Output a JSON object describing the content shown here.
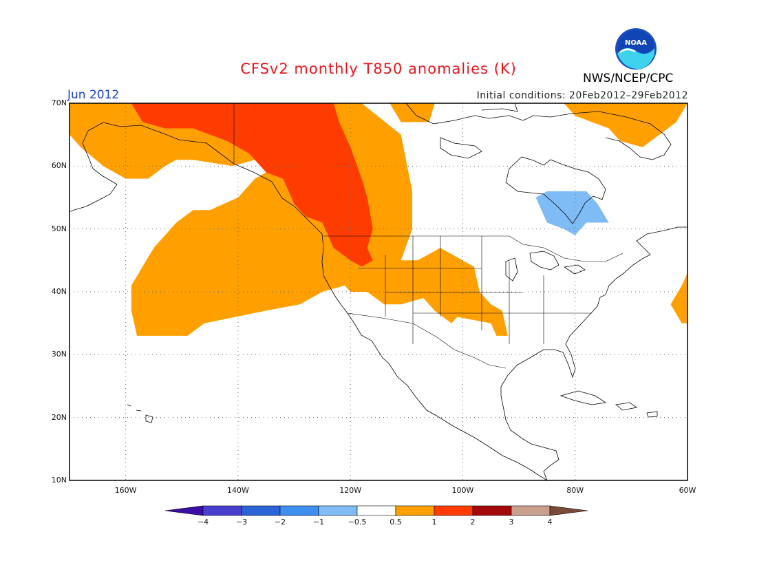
{
  "header": {
    "title": "CFSv2 monthly T850 anomalies (K)",
    "period": "Jun 2012",
    "initial_conditions": "Initial conditions: 20Feb2012–29Feb2012",
    "agency": "NWS/NCEP/CPC",
    "logo_text": "NOAA"
  },
  "map": {
    "lon_range": [
      -170,
      -60
    ],
    "lat_range": [
      10,
      70
    ],
    "lat_ticks": [
      {
        "value": 70,
        "label": "70N"
      },
      {
        "value": 60,
        "label": "60N"
      },
      {
        "value": 50,
        "label": "50N"
      },
      {
        "value": 40,
        "label": "40N"
      },
      {
        "value": 30,
        "label": "30N"
      },
      {
        "value": 20,
        "label": "20N"
      },
      {
        "value": 10,
        "label": "10N"
      }
    ],
    "lon_ticks": [
      {
        "value": -160,
        "label": "160W"
      },
      {
        "value": -140,
        "label": "140W"
      },
      {
        "value": -120,
        "label": "120W"
      },
      {
        "value": -100,
        "label": "100W"
      },
      {
        "value": -80,
        "label": "80W"
      },
      {
        "value": -60,
        "label": "60W"
      }
    ]
  },
  "chart_data": {
    "type": "heatmap",
    "variable": "T850 anomaly",
    "units": "K",
    "colorbar": {
      "bins": [
        {
          "color": "#3a0fa8"
        },
        {
          "color": "#4b3fd0"
        },
        {
          "color": "#2a64d6"
        },
        {
          "color": "#3d8ff0"
        },
        {
          "color": "#7fbcf6"
        },
        {
          "color": "#ffffff"
        },
        {
          "color": "#ffa000"
        },
        {
          "color": "#ff3c00"
        },
        {
          "color": "#a40a0a"
        },
        {
          "color": "#c9a08f"
        },
        {
          "color": "#7a4b3a"
        }
      ],
      "tick_labels": [
        "−4",
        "−3",
        "−2",
        "−1",
        "−0.5",
        "0.5",
        "1",
        "2",
        "3",
        "4"
      ]
    },
    "regions": [
      {
        "level": "0.5 to 1 K",
        "color": "#ffa000",
        "polygon": [
          [
            -170,
            70
          ],
          [
            -118,
            70
          ],
          [
            -111,
            65
          ],
          [
            -109,
            56
          ],
          [
            -109,
            50
          ],
          [
            -111,
            45
          ],
          [
            -108,
            45
          ],
          [
            -104,
            47
          ],
          [
            -98,
            44
          ],
          [
            -97,
            40
          ],
          [
            -95,
            38
          ],
          [
            -93,
            37
          ],
          [
            -92,
            33
          ],
          [
            -94,
            33
          ],
          [
            -95,
            35
          ],
          [
            -101,
            36
          ],
          [
            -102,
            35
          ],
          [
            -105,
            37
          ],
          [
            -107,
            39
          ],
          [
            -111,
            38
          ],
          [
            -114,
            38
          ],
          [
            -117,
            40
          ],
          [
            -120,
            40
          ],
          [
            -121,
            41
          ],
          [
            -125,
            40
          ],
          [
            -129,
            38
          ],
          [
            -135,
            37
          ],
          [
            -146,
            35
          ],
          [
            -149,
            33
          ],
          [
            -158,
            33
          ],
          [
            -159,
            37
          ],
          [
            -159,
            41
          ],
          [
            -157,
            44
          ],
          [
            -155,
            47
          ],
          [
            -151,
            51
          ],
          [
            -148,
            53
          ],
          [
            -145,
            53
          ],
          [
            -140,
            55
          ],
          [
            -137,
            58
          ],
          [
            -133,
            60
          ],
          [
            -137,
            61
          ],
          [
            -141,
            60
          ],
          [
            -148,
            61
          ],
          [
            -151,
            61
          ],
          [
            -153,
            60
          ],
          [
            -156,
            58
          ],
          [
            -160,
            58
          ],
          [
            -164,
            60
          ],
          [
            -168,
            63
          ],
          [
            -170,
            65
          ]
        ]
      },
      {
        "level": "0.5 to 1 K",
        "color": "#ffa000",
        "polygon": [
          [
            -113,
            70
          ],
          [
            -105,
            70
          ],
          [
            -106,
            67
          ],
          [
            -111,
            67
          ]
        ]
      },
      {
        "level": "0.5 to 1 K",
        "color": "#ffa000",
        "polygon": [
          [
            -82,
            70
          ],
          [
            -60,
            70
          ],
          [
            -62,
            67
          ],
          [
            -65,
            65
          ],
          [
            -68,
            63
          ],
          [
            -72,
            64
          ],
          [
            -74,
            66
          ],
          [
            -77,
            67
          ],
          [
            -80,
            68
          ]
        ]
      },
      {
        "level": "0.5 to 1 K",
        "color": "#ffa000",
        "polygon": [
          [
            -60,
            43
          ],
          [
            -61,
            41
          ],
          [
            -63,
            38
          ],
          [
            -61,
            35
          ],
          [
            -60,
            35
          ]
        ]
      },
      {
        "level": "1 to 2 K",
        "color": "#ff3c00",
        "polygon": [
          [
            -159,
            70
          ],
          [
            -123,
            70
          ],
          [
            -122,
            67
          ],
          [
            -120,
            63
          ],
          [
            -118,
            58
          ],
          [
            -117,
            55
          ],
          [
            -116,
            50
          ],
          [
            -117,
            47
          ],
          [
            -116,
            45
          ],
          [
            -118,
            44
          ],
          [
            -120,
            45
          ],
          [
            -123,
            47
          ],
          [
            -125,
            51
          ],
          [
            -128,
            52
          ],
          [
            -130,
            54
          ],
          [
            -131,
            56
          ],
          [
            -132,
            58
          ],
          [
            -135,
            59
          ],
          [
            -138,
            62
          ],
          [
            -142,
            64
          ],
          [
            -148,
            66
          ],
          [
            -153,
            66
          ],
          [
            -157,
            67
          ]
        ]
      },
      {
        "level": "−1 to −0.5 K",
        "color": "#7fbcf6",
        "polygon": [
          [
            -85,
            56
          ],
          [
            -78,
            56
          ],
          [
            -76,
            54
          ],
          [
            -74,
            51
          ],
          [
            -78,
            51
          ],
          [
            -80,
            49
          ],
          [
            -82,
            50
          ],
          [
            -85,
            51
          ],
          [
            -86,
            53
          ],
          [
            -87,
            55
          ]
        ]
      }
    ]
  }
}
